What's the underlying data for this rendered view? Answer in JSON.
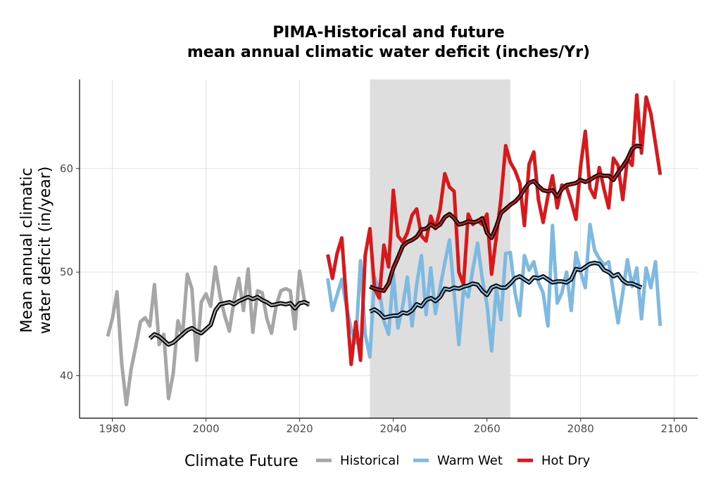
{
  "chart_data": {
    "type": "line",
    "title_line1": "PIMA-Historical and future",
    "title_line2": "mean annual climatic water deficit (inches/Yr)",
    "ylabel_line1": "Mean annual climatic",
    "ylabel_line2": "water deficit (in/year)",
    "xlabel": "",
    "xlim": [
      1973,
      2105
    ],
    "ylim": [
      35.9,
      68.6
    ],
    "xticks": [
      1980,
      2000,
      2020,
      2040,
      2060,
      2080,
      2100
    ],
    "yticks": [
      40,
      50,
      60
    ],
    "grid": true,
    "shaded_period": {
      "from": 2035,
      "to": 2065,
      "color": "#dcdcdc"
    },
    "legend": {
      "title": "Climate Future",
      "position": "bottom"
    },
    "colors": {
      "Historical": "#a6a6a6",
      "Warm Wet": "#7db9e1",
      "Hot Dry": "#d7191c",
      "smooth_outline": "#000000"
    },
    "series": [
      {
        "name": "Historical",
        "x_start": 1979,
        "values": [
          43.8,
          45.5,
          48.1,
          41.2,
          37.2,
          40.6,
          42.8,
          45.2,
          45.6,
          44.8,
          48.8,
          43.0,
          44.0,
          37.8,
          40.2,
          45.3,
          43.9,
          49.8,
          48.4,
          41.5,
          47.1,
          47.9,
          46.7,
          50.5,
          47.7,
          45.8,
          44.3,
          47.3,
          49.4,
          46.3,
          50.3,
          44.2,
          48.2,
          48.0,
          45.5,
          44.1,
          46.8,
          48.2,
          48.4,
          48.2,
          44.5,
          50.1,
          47.3,
          46.7
        ],
        "smooth_x_start": 1988,
        "smooth": [
          43.6,
          44.0,
          43.8,
          43.4,
          43.0,
          43.2,
          43.6,
          44.0,
          44.4,
          44.6,
          44.3,
          44.1,
          44.5,
          44.9,
          46.3,
          46.9,
          47.0,
          47.1,
          46.9,
          47.2,
          47.4,
          47.6,
          47.4,
          47.6,
          47.3,
          47.1,
          46.8,
          46.9,
          47.0,
          46.9,
          47.0,
          46.5,
          47.0,
          47.1,
          46.9
        ]
      },
      {
        "name": "Warm Wet",
        "x_start": 2026,
        "values": [
          49.4,
          46.3,
          47.8,
          49.3,
          46.7,
          44.5,
          43.2,
          51.1,
          44.0,
          41.8,
          49.5,
          48.3,
          45.3,
          44.0,
          49.8,
          44.6,
          46.7,
          49.5,
          44.8,
          48.8,
          51.6,
          45.9,
          50.4,
          46.0,
          48.5,
          50.9,
          53.1,
          48.0,
          43.0,
          48.3,
          47.6,
          50.3,
          52.8,
          49.4,
          46.9,
          42.4,
          48.5,
          45.4,
          51.8,
          51.9,
          48.0,
          45.8,
          51.6,
          50.2,
          51.0,
          49.0,
          48.0,
          44.8,
          54.5,
          47.0,
          48.0,
          50.0,
          46.3,
          51.9,
          50.0,
          48.5,
          54.6,
          52.1,
          51.3,
          50.7,
          51.0,
          48.0,
          45.1,
          48.0,
          51.2,
          48.6,
          50.4,
          45.5,
          50.4,
          48.5,
          51.0,
          44.8
        ]
      },
      {
        "name": "Hot Dry",
        "x_start": 2026,
        "values": [
          51.7,
          49.4,
          51.8,
          53.3,
          47.1,
          41.1,
          45.2,
          41.5,
          51.6,
          54.2,
          48.4,
          47.5,
          52.6,
          50.5,
          57.9,
          53.5,
          52.9,
          53.8,
          55.5,
          56.1,
          53.5,
          53.0,
          55.4,
          54.2,
          56.1,
          59.5,
          58.2,
          57.8,
          50.0,
          48.8,
          55.6,
          54.6,
          55.0,
          54.6,
          55.6,
          49.8,
          53.4,
          57.1,
          62.2,
          60.6,
          59.8,
          58.6,
          54.5,
          60.4,
          61.6,
          57.0,
          54.8,
          57.3,
          59.3,
          56.2,
          58.4,
          58.2,
          56.8,
          55.1,
          60.2,
          63.6,
          58.1,
          57.2,
          60.1,
          58.0,
          56.2,
          61.0,
          60.3,
          57.0,
          61.0,
          60.3,
          67.1,
          61.5,
          66.9,
          65.3,
          62.4,
          59.4
        ],
        "smooth_x_start": 2035
      }
    ],
    "smooth_series": [
      {
        "name": "Warm Wet",
        "x_start": 2035,
        "values": [
          46.2,
          46.4,
          46.1,
          45.6,
          45.7,
          45.8,
          45.8,
          46.1,
          46.0,
          46.3,
          46.9,
          46.7,
          47.3,
          47.5,
          47.2,
          47.6,
          48.4,
          48.3,
          48.5,
          48.4,
          48.6,
          48.7,
          48.9,
          48.8,
          48.2,
          47.8,
          48.5,
          48.7,
          48.5,
          48.5,
          48.9,
          49.4,
          49.6,
          49.3,
          49.0,
          49.5,
          49.4,
          49.6,
          49.3,
          49.0,
          49.1,
          49.1,
          49.0,
          49.3,
          50.3,
          50.2,
          50.5,
          50.8,
          50.9,
          50.8,
          50.2,
          50.0,
          49.6,
          49.8,
          49.2,
          48.9,
          48.9,
          48.7,
          48.5
        ]
      },
      {
        "name": "Hot Dry",
        "x_start": 2035,
        "values": [
          48.6,
          48.4,
          48.3,
          48.2,
          48.9,
          50.4,
          51.4,
          52.5,
          52.9,
          53.1,
          53.4,
          54.1,
          54.2,
          54.6,
          54.3,
          54.6,
          55.3,
          55.6,
          55.2,
          54.6,
          54.7,
          54.9,
          54.8,
          54.9,
          55.2,
          53.8,
          53.3,
          54.4,
          55.7,
          56.1,
          56.5,
          56.8,
          57.3,
          58.0,
          58.6,
          58.8,
          58.3,
          57.9,
          57.8,
          57.9,
          57.3,
          58.0,
          58.4,
          58.5,
          58.6,
          58.9,
          58.7,
          58.9,
          59.2,
          59.4,
          59.3,
          59.3,
          58.9,
          59.6,
          60.2,
          60.9,
          61.9,
          62.2,
          62.1
        ]
      }
    ]
  }
}
